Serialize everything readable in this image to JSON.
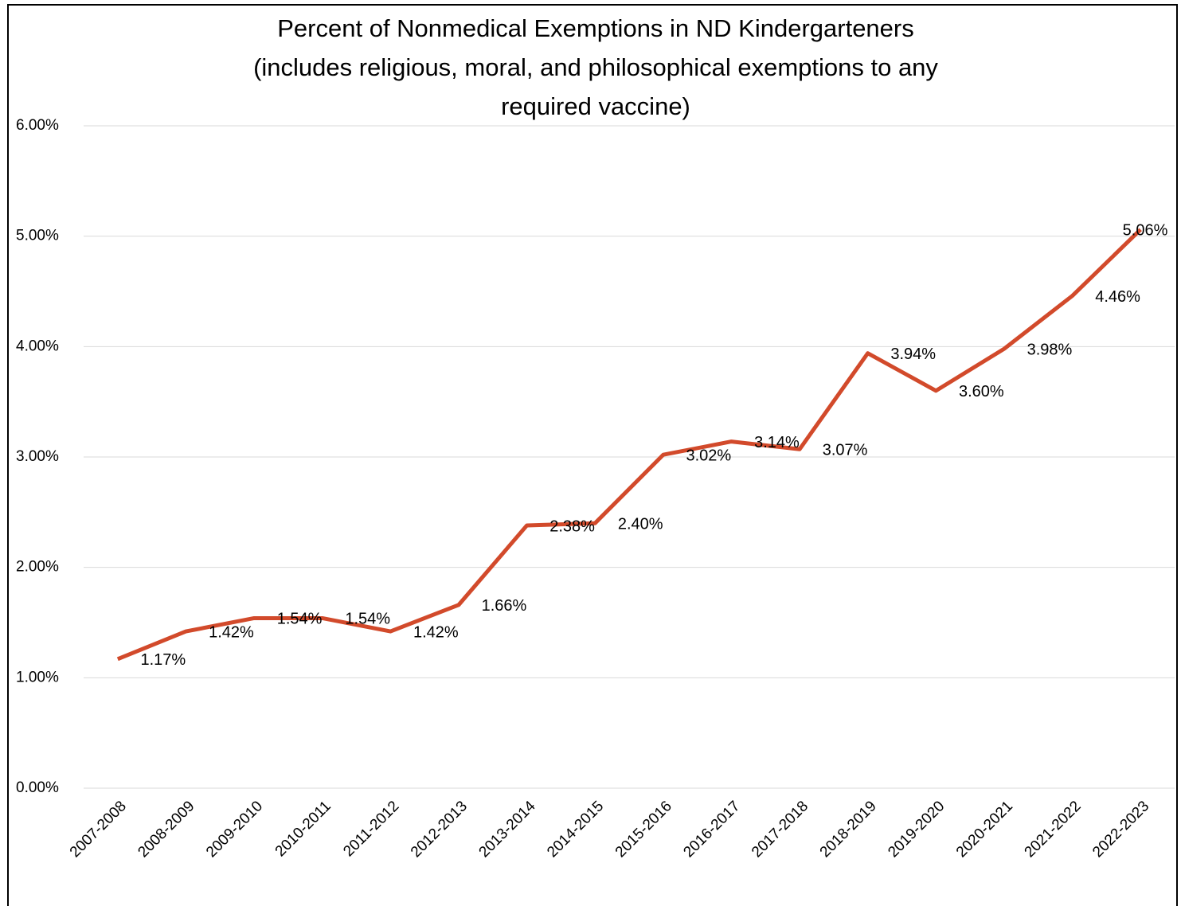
{
  "chart_data": {
    "type": "line",
    "title": [
      "Percent of Nonmedical Exemptions in ND Kindergarteners",
      "(includes religious, moral, and philosophical exemptions to any",
      "required vaccine)"
    ],
    "categories": [
      "2007-2008",
      "2008-2009",
      "2009-2010",
      "2010-2011",
      "2011-2012",
      "2012-2013",
      "2013-2014",
      "2014-2015",
      "2015-2016",
      "2016-2017",
      "2017-2018",
      "2018-2019",
      "2019-2020",
      "2020-2021",
      "2021-2022",
      "2022-2023"
    ],
    "series": [
      {
        "color": "#d24a2b",
        "values": [
          1.17,
          1.42,
          1.54,
          1.54,
          1.42,
          1.66,
          2.38,
          2.4,
          3.02,
          3.14,
          3.07,
          3.94,
          3.6,
          3.98,
          4.46,
          5.06
        ],
        "value_labels": [
          "1.17%",
          "1.42%",
          "1.54%",
          "1.54%",
          "1.42%",
          "1.66%",
          "2.38%",
          "2.40%",
          "3.02%",
          "3.14%",
          "3.07%",
          "3.94%",
          "3.60%",
          "3.98%",
          "4.46%",
          "5.06%"
        ]
      }
    ],
    "ylim": [
      0,
      6
    ],
    "yticks": [
      {
        "value": 0,
        "label": "0.00%"
      },
      {
        "value": 1,
        "label": "1.00%"
      },
      {
        "value": 2,
        "label": "2.00%"
      },
      {
        "value": 3,
        "label": "3.00%"
      },
      {
        "value": 4,
        "label": "4.00%"
      },
      {
        "value": 5,
        "label": "5.00%"
      },
      {
        "value": 6,
        "label": "6.00%"
      }
    ],
    "grid": true
  }
}
